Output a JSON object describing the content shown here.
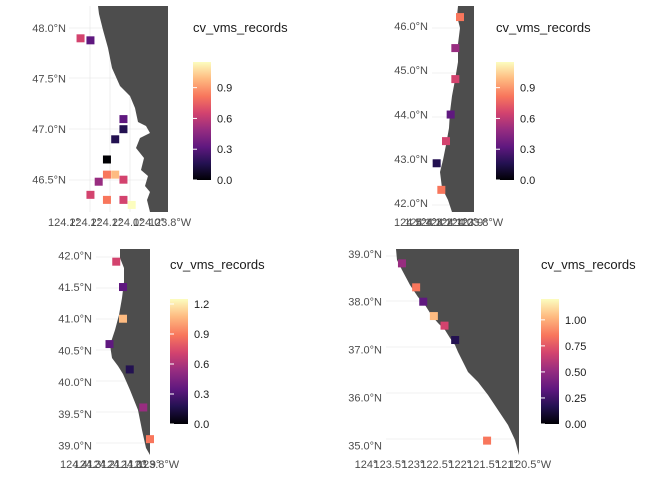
{
  "colors": {
    "land": "#4d4d4d",
    "grid": "#ebebeb",
    "tick_text": "#4d4d4d",
    "scale": [
      "#000004",
      "#231151",
      "#5f187f",
      "#982d80",
      "#d3436e",
      "#f8765c",
      "#febb81",
      "#fcfdbf"
    ]
  },
  "chart_data": [
    {
      "type": "heatmap",
      "panel": "top-left",
      "ylabels": [
        "48.0°N",
        "47.5°N",
        "47.0°N",
        "46.5°N"
      ],
      "y_ticks": [
        48.0,
        47.5,
        47.0,
        46.5
      ],
      "ylim": [
        46.18,
        48.22
      ],
      "xlabels": [
        "124.2°W",
        "124.0°W",
        "123.8°W"
      ],
      "x_tick_labels_shown": [
        "124.2°",
        "124.2°",
        "124.2°",
        "124.0°",
        "124.0°",
        "123.8°W"
      ],
      "xlim": [
        -124.35,
        -123.75
      ],
      "legend": {
        "title": "cv_vms_records",
        "ticks": [
          "0.0",
          "0.3",
          "0.6",
          "0.9"
        ],
        "range": [
          0,
          1.15
        ]
      },
      "cells": [
        {
          "lon": -124.28,
          "lat": 47.9,
          "v": 0.6
        },
        {
          "lon": -124.22,
          "lat": 47.88,
          "v": 0.3
        },
        {
          "lon": -124.02,
          "lat": 47.1,
          "v": 0.4
        },
        {
          "lon": -124.02,
          "lat": 47.0,
          "v": 0.2
        },
        {
          "lon": -124.07,
          "lat": 46.9,
          "v": 0.1
        },
        {
          "lon": -124.12,
          "lat": 46.7,
          "v": 0.0
        },
        {
          "lon": -124.12,
          "lat": 46.55,
          "v": 0.9
        },
        {
          "lon": -124.07,
          "lat": 46.55,
          "v": 1.0
        },
        {
          "lon": -124.02,
          "lat": 46.5,
          "v": 0.7
        },
        {
          "lon": -124.17,
          "lat": 46.48,
          "v": 0.5
        },
        {
          "lon": -124.22,
          "lat": 46.35,
          "v": 0.6
        },
        {
          "lon": -124.12,
          "lat": 46.3,
          "v": 0.8
        },
        {
          "lon": -124.02,
          "lat": 46.3,
          "v": 0.7
        },
        {
          "lon": -123.97,
          "lat": 46.25,
          "v": 1.1
        }
      ]
    },
    {
      "type": "heatmap",
      "panel": "top-right",
      "ylabels": [
        "46.0°N",
        "45.0°N",
        "44.0°N",
        "43.0°N",
        "42.0°N"
      ],
      "y_ticks": [
        46.0,
        45.0,
        44.0,
        43.0,
        42.0
      ],
      "ylim": [
        41.8,
        46.45
      ],
      "xlabels": [
        "124.5°W",
        "124.0°W"
      ],
      "x_tick_labels_shown": [
        "124.5°",
        "124.4°",
        "124.3°",
        "124.2°",
        "124.1°",
        "124.0°",
        "123.9°",
        "123.8°W"
      ],
      "xlim": [
        -124.6,
        -123.7
      ],
      "legend": {
        "title": "cv_vms_records",
        "ticks": [
          "0.0",
          "0.3",
          "0.6",
          "0.9"
        ],
        "range": [
          0,
          1.15
        ]
      },
      "cells": [
        {
          "lon": -124.0,
          "lat": 46.2,
          "v": 0.9
        },
        {
          "lon": -124.1,
          "lat": 45.5,
          "v": 0.5
        },
        {
          "lon": -124.1,
          "lat": 44.8,
          "v": 0.7
        },
        {
          "lon": -124.2,
          "lat": 44.0,
          "v": 0.3
        },
        {
          "lon": -124.3,
          "lat": 43.4,
          "v": 0.6
        },
        {
          "lon": -124.5,
          "lat": 42.9,
          "v": 0.2
        },
        {
          "lon": -124.4,
          "lat": 42.3,
          "v": 0.8
        }
      ]
    },
    {
      "type": "heatmap",
      "panel": "bottom-left",
      "ylabels": [
        "42.0°N",
        "41.5°N",
        "41.0°N",
        "40.5°N",
        "40.0°N",
        "39.5°N",
        "39.0°N"
      ],
      "y_ticks": [
        42.0,
        41.5,
        41.0,
        40.5,
        40.0,
        39.5,
        39.0
      ],
      "ylim": [
        38.85,
        42.1
      ],
      "xlabels": [
        "124.4°W",
        "124.0°W",
        "123.8°W"
      ],
      "x_tick_labels_shown": [
        "124.4°",
        "124.3°",
        "124.2°",
        "124.1°",
        "124.0°",
        "123.9°",
        "123.8°W"
      ],
      "xlim": [
        -124.5,
        -123.7
      ],
      "legend": {
        "title": "cv_vms_records",
        "ticks": [
          "0.0",
          "0.3",
          "0.6",
          "0.9",
          "1.2"
        ],
        "range": [
          0,
          1.25
        ]
      },
      "cells": [
        {
          "lon": -124.2,
          "lat": 41.9,
          "v": 0.8
        },
        {
          "lon": -124.1,
          "lat": 41.5,
          "v": 0.4
        },
        {
          "lon": -124.1,
          "lat": 41.0,
          "v": 1.0
        },
        {
          "lon": -124.3,
          "lat": 40.6,
          "v": 0.3
        },
        {
          "lon": -124.0,
          "lat": 40.2,
          "v": 0.2
        },
        {
          "lon": -123.8,
          "lat": 39.6,
          "v": 0.6
        },
        {
          "lon": -123.7,
          "lat": 39.1,
          "v": 0.9
        }
      ]
    },
    {
      "type": "heatmap",
      "panel": "bottom-right",
      "ylabels": [
        "39.0°N",
        "38.0°N",
        "37.0°N",
        "36.0°N",
        "35.0°N"
      ],
      "y_ticks": [
        39.0,
        38.0,
        37.0,
        36.0,
        35.0
      ],
      "ylim": [
        34.8,
        39.1
      ],
      "xlabels": [
        "124.0°W",
        "123.5°W",
        "123.0°W",
        "122.5°W",
        "122.0°W",
        "121.5°W",
        "121.0°W",
        "120.5°W"
      ],
      "x_tick_labels_shown": [
        "124°",
        "123.5°",
        "123°",
        "122.5°",
        "122°",
        "121.5°",
        "121°",
        "120.5°W"
      ],
      "xlim": [
        -124.05,
        -120.3
      ],
      "legend": {
        "title": "cv_vms_records",
        "ticks": [
          "0.00",
          "0.25",
          "0.50",
          "0.75",
          "1.00"
        ],
        "range": [
          0,
          1.2
        ]
      },
      "cells": [
        {
          "lon": -123.6,
          "lat": 38.8,
          "v": 0.5
        },
        {
          "lon": -123.2,
          "lat": 38.3,
          "v": 0.8
        },
        {
          "lon": -123.0,
          "lat": 38.0,
          "v": 0.3
        },
        {
          "lon": -122.7,
          "lat": 37.7,
          "v": 1.0
        },
        {
          "lon": -122.4,
          "lat": 37.5,
          "v": 0.6
        },
        {
          "lon": -122.1,
          "lat": 37.2,
          "v": 0.2
        },
        {
          "lon": -121.2,
          "lat": 35.1,
          "v": 0.9
        }
      ]
    }
  ]
}
